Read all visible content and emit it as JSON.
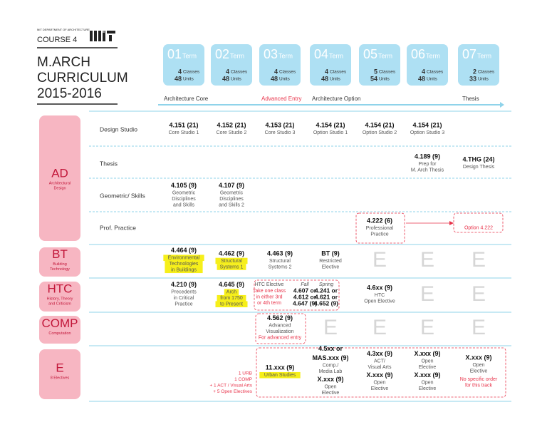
{
  "header": {
    "department": "MIT DEPARTMENT OF ARCHITECTURE",
    "course": "COURSE 4",
    "title": [
      "M.ARCH",
      "CURRICULUM",
      "2015-2016"
    ]
  },
  "terms": [
    {
      "num": "01",
      "label": "Term",
      "classes": "4",
      "classes_label": "Classes",
      "units": "48",
      "units_label": "Units"
    },
    {
      "num": "02",
      "label": "Term",
      "classes": "4",
      "classes_label": "Classes",
      "units": "48",
      "units_label": "Units"
    },
    {
      "num": "03",
      "label": "Term",
      "classes": "4",
      "classes_label": "Classes",
      "units": "48",
      "units_label": "Units"
    },
    {
      "num": "04",
      "label": "Term",
      "classes": "4",
      "classes_label": "Classes",
      "units": "48",
      "units_label": "Units"
    },
    {
      "num": "05",
      "label": "Term",
      "classes": "5",
      "classes_label": "Classes",
      "units": "54",
      "units_label": "Units"
    },
    {
      "num": "06",
      "label": "Term",
      "classes": "4",
      "classes_label": "Classes",
      "units": "48",
      "units_label": "Units"
    },
    {
      "num": "07",
      "label": "Term",
      "classes": "2",
      "classes_label": "Classes",
      "units": "33",
      "units_label": "Units"
    }
  ],
  "tracks": {
    "core": "Architecture Core",
    "advanced": "Advanced Entry",
    "option": "Architecture Option",
    "thesis": "Thesis"
  },
  "groups": [
    {
      "abbr": "AD",
      "name": [
        "Architectural",
        "Design"
      ],
      "rows": [
        {
          "label": "Design Studio",
          "cells": [
            [
              {
                "code": "4.151 (21)",
                "lines": [
                  "Core Studio 1"
                ]
              }
            ],
            [
              {
                "code": "4.152 (21)",
                "lines": [
                  "Core Studio 2"
                ]
              }
            ],
            [
              {
                "code": "4.153 (21)",
                "lines": [
                  "Core Studio 3"
                ]
              }
            ],
            [
              {
                "code": "4.154 (21)",
                "lines": [
                  "Option Studio 1"
                ]
              }
            ],
            [
              {
                "code": "4.154 (21)",
                "lines": [
                  "Option Studio 2"
                ]
              }
            ],
            [
              {
                "code": "4.154 (21)",
                "lines": [
                  "Option Studio 3"
                ]
              }
            ],
            null
          ]
        },
        {
          "label": "Thesis",
          "cells": [
            null,
            null,
            null,
            null,
            null,
            [
              {
                "code": "4.189 (9)",
                "lines": [
                  "Prep for",
                  "M. Arch Thesis"
                ]
              }
            ],
            [
              {
                "code": "4.THG (24)",
                "lines": [
                  "Design Thesis"
                ]
              }
            ]
          ]
        },
        {
          "label": "Geometric/ Skills",
          "cells": [
            [
              {
                "code": "4.105 (9)",
                "lines": [
                  "Geometric",
                  "Disciplines",
                  "and Skills"
                ]
              }
            ],
            [
              {
                "code": "4.107 (9)",
                "lines": [
                  "Geometric",
                  "Disciplines",
                  "and Skills 2"
                ]
              }
            ],
            null,
            null,
            null,
            null,
            null
          ]
        },
        {
          "label": "Prof. Practice",
          "cells": [
            null,
            null,
            null,
            null,
            [
              {
                "code": "4.222 (6)",
                "lines": [
                  "Professional",
                  "Practice"
                ]
              }
            ],
            null,
            [
              {
                "notes": [
                  "Option 4.222"
                ]
              }
            ]
          ]
        }
      ]
    },
    {
      "abbr": "BT",
      "name": [
        "Building",
        "Technology"
      ],
      "rows": [
        {
          "cells": [
            [
              {
                "code": "4.464 (9)",
                "lines": [
                  "Environmental",
                  "Technologies",
                  "in Buildings"
                ],
                "highlight": true
              }
            ],
            [
              {
                "code": "4.462 (9)",
                "lines": [
                  "Structural",
                  "Systems 1"
                ],
                "highlight": true
              }
            ],
            [
              {
                "code": "4.463 (9)",
                "lines": [
                  "Structural",
                  "Systems 2"
                ]
              }
            ],
            [
              {
                "code": "BT (9)",
                "lines": [
                  "Restricted",
                  "Elective"
                ]
              }
            ],
            [
              {
                "code": "E"
              }
            ],
            [
              {
                "code": "E"
              }
            ],
            [
              {
                "code": "E"
              }
            ]
          ]
        }
      ]
    },
    {
      "abbr": "HTC",
      "name": [
        "History, Theory",
        "and Criticism"
      ],
      "rows": [
        {
          "cells": [
            [
              {
                "code": "4.210 (9)",
                "lines": [
                  "Precedents",
                  "in Critical",
                  "Practice"
                ]
              }
            ],
            [
              {
                "code": "4.645 (9)",
                "lines": [
                  "Arch",
                  "from 1750",
                  "to Present"
                ],
                "highlight": true
              }
            ],
            null,
            null,
            [
              {
                "code": "4.6xx (9)",
                "lines": [
                  "HTC",
                  "Open Elective"
                ]
              }
            ],
            [
              {
                "code": "E"
              }
            ],
            [
              {
                "code": "E"
              }
            ]
          ]
        }
      ],
      "elective": {
        "title": "HTC Elective",
        "notes": [
          "Take one class",
          "in either 3rd",
          "or 4th term"
        ],
        "fall": {
          "label": "Fall",
          "codes": [
            "4.607 or",
            "4.612 or",
            "4.647 (9)"
          ]
        },
        "spring": {
          "label": "Spring",
          "codes": [
            "4.241 or",
            "4.621 or",
            "4.652 (9)"
          ]
        }
      }
    },
    {
      "abbr": "COMP",
      "name": [
        "Computation"
      ],
      "rows": [
        {
          "cells": [
            null,
            null,
            [
              {
                "code": "4.562 (9)",
                "lines": [
                  "Advanced",
                  "Visualization"
                ],
                "notes": [
                  "For advanced entry"
                ]
              }
            ],
            [
              {
                "code": "E"
              }
            ],
            [
              {
                "code": "E"
              }
            ],
            [
              {
                "code": "E"
              }
            ],
            [
              {
                "code": "E"
              }
            ]
          ]
        }
      ]
    },
    {
      "abbr": "E",
      "name": [
        "8 Electives"
      ],
      "requirements": [
        "1 URB",
        "1 COMP",
        "+ 1 ACT / Visual Arts",
        "+ 5 Open Electives"
      ],
      "rows": [
        {
          "cells": [
            null,
            null,
            [
              {
                "code": "11.xxx (9)",
                "lines": [
                  "Urban Studies"
                ],
                "highlight": true
              }
            ],
            [
              {
                "code": "4.5xx or",
                "lines": []
              },
              {
                "code": "MAS.xxx (9)",
                "lines": [
                  "Comp./",
                  "Media Lab"
                ]
              },
              {
                "code": "X.xxx (9)",
                "lines": [
                  "Open",
                  "Elective"
                ]
              }
            ],
            [
              {
                "code": "4.3xx (9)",
                "lines": [
                  "ACT/",
                  "Visual Arts"
                ]
              },
              {
                "code": "X.xxx (9)",
                "lines": [
                  "Open",
                  "Elective"
                ]
              }
            ],
            [
              {
                "code": "X.xxx (9)",
                "lines": [
                  "Open",
                  "Elective"
                ]
              },
              {
                "code": "X.xxx (9)",
                "lines": [
                  "Open",
                  "Elective"
                ]
              }
            ],
            [
              {
                "code": "X.xxx (9)",
                "lines": [
                  "Open",
                  "Elective"
                ]
              },
              {
                "notes": [
                  "No specific order",
                  "for this track"
                ]
              }
            ]
          ]
        }
      ]
    }
  ]
}
